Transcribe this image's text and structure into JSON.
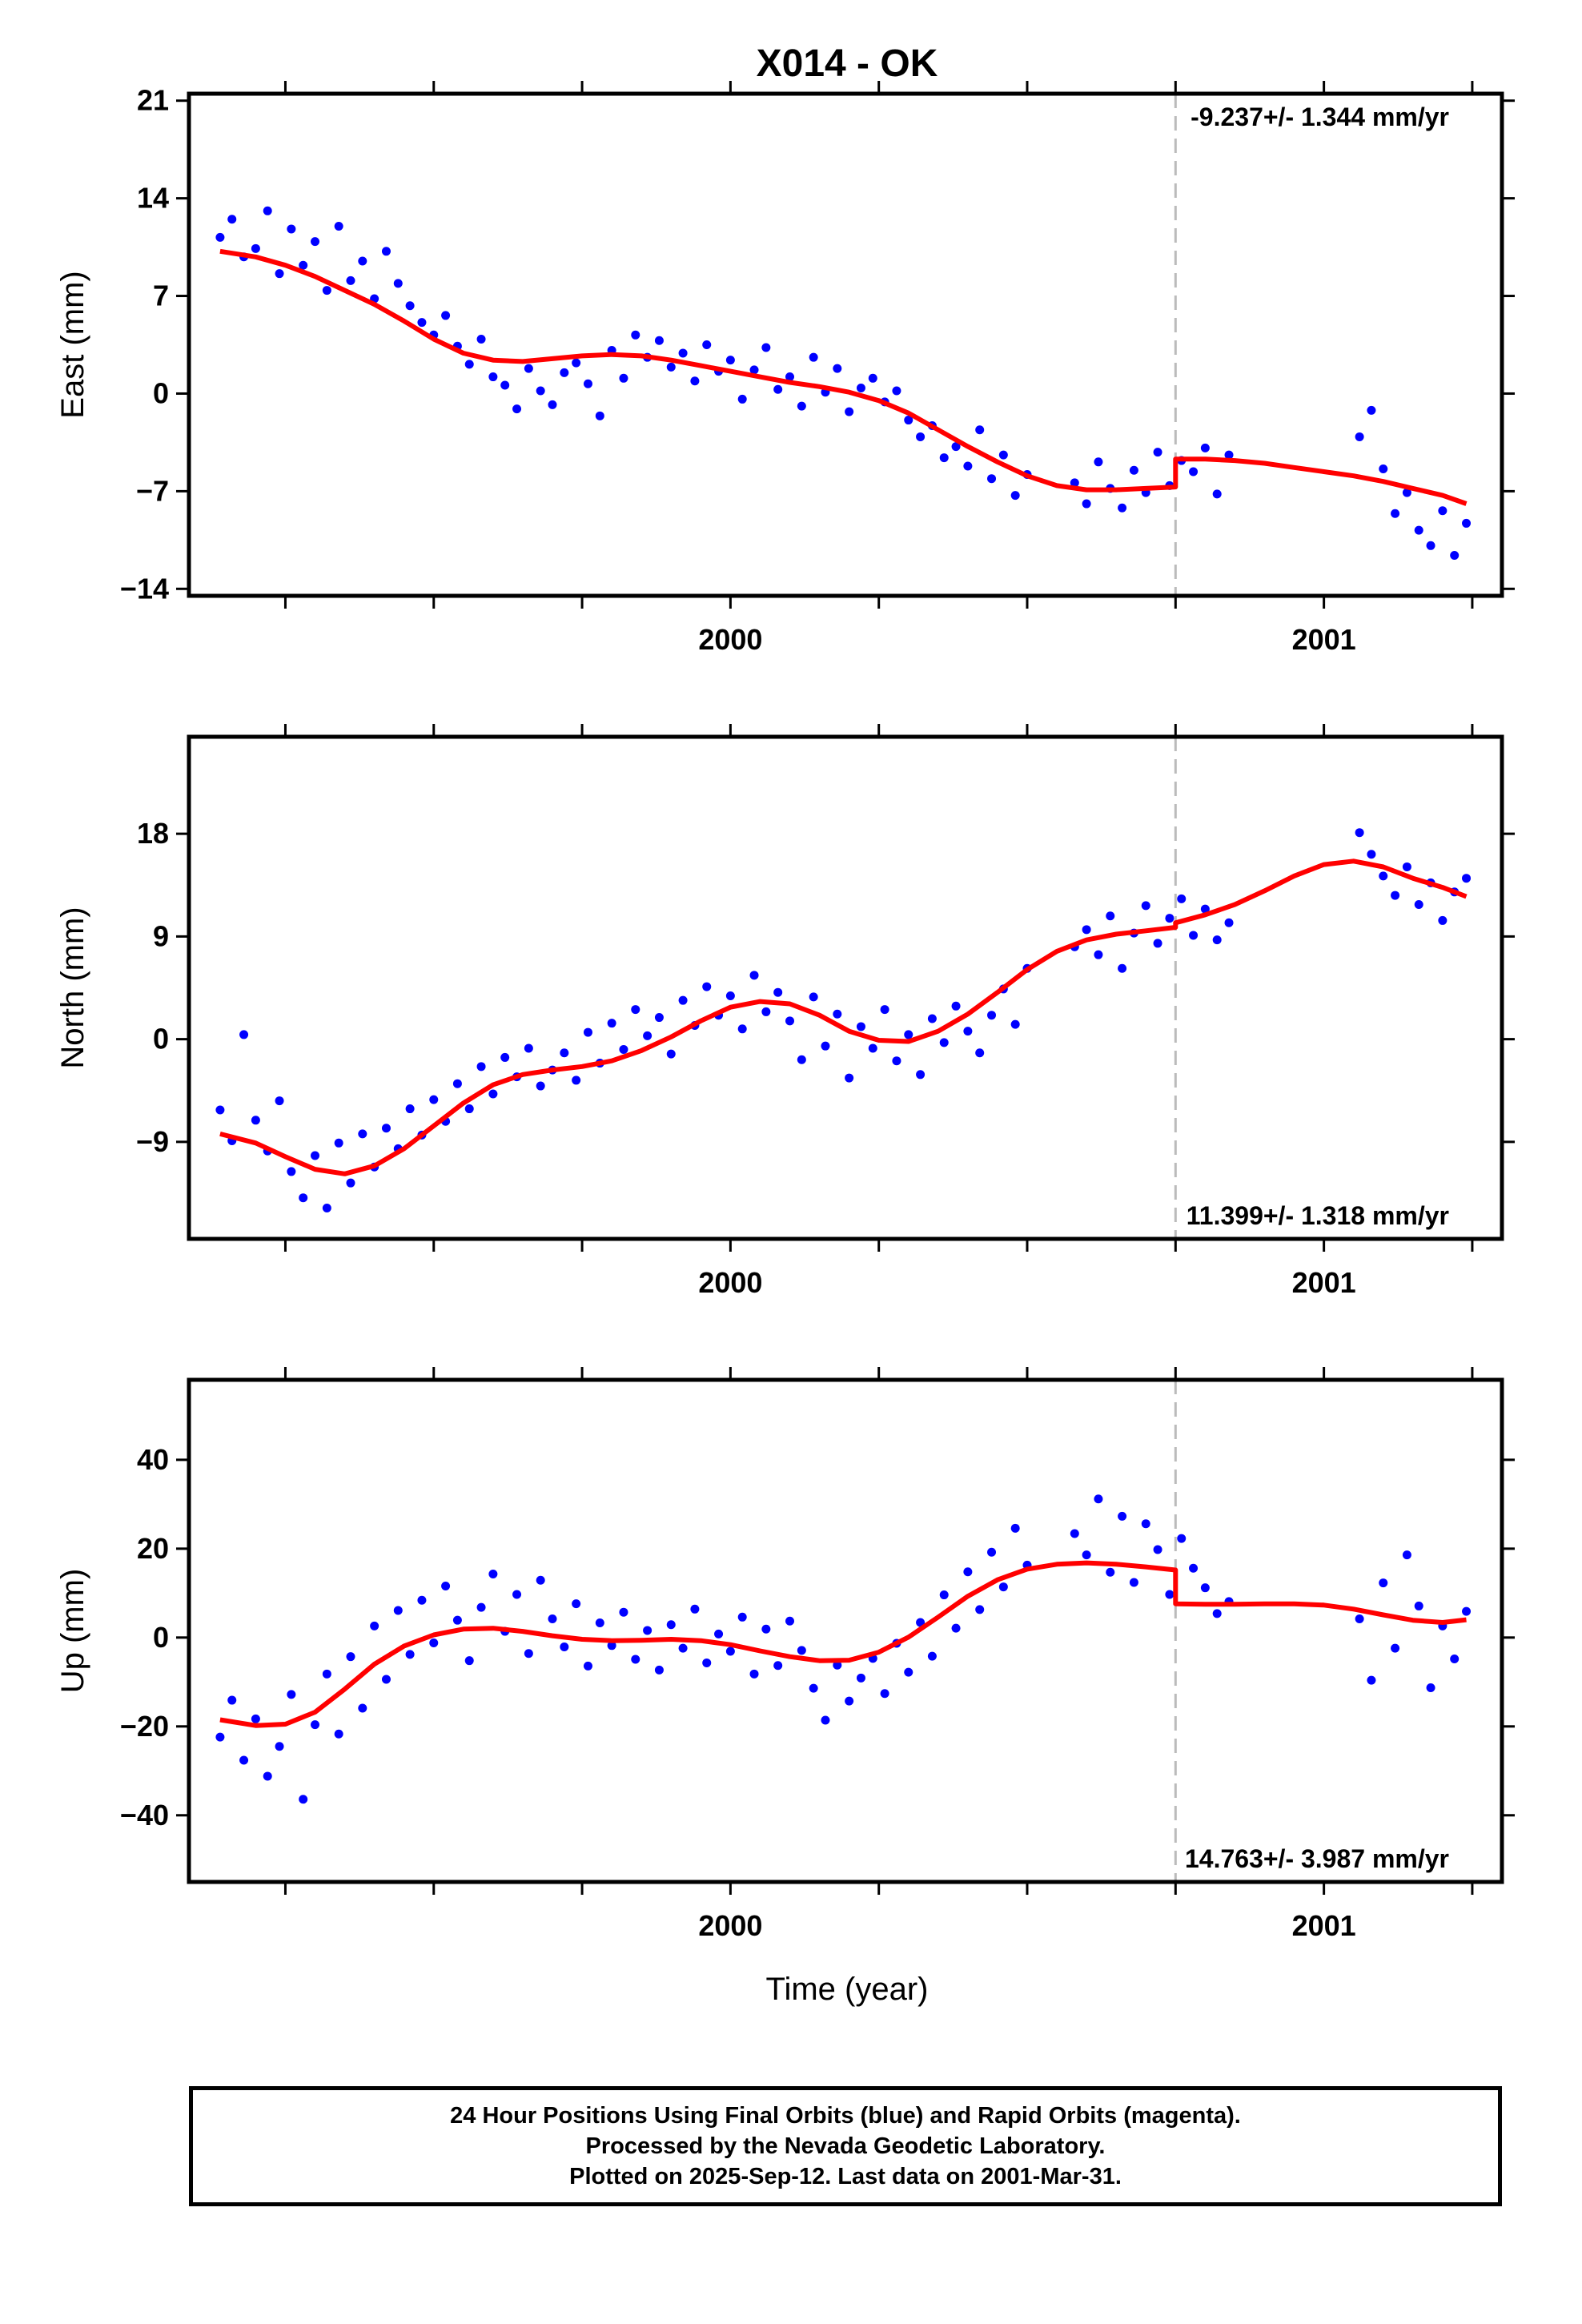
{
  "title": "X014 - OK",
  "x_axis_label": "Time (year)",
  "footer": {
    "lines": [
      "24 Hour Positions Using Final Orbits (blue) and Rapid Orbits (magenta).",
      "Processed by the Nevada Geodetic Laboratory.",
      "Plotted on 2025-Sep-12. Last data on 2001-Mar-31."
    ]
  },
  "colors": {
    "points": "#0000ff",
    "model": "#ff0000",
    "marker_line": "#bbbbbb",
    "frame": "#000000"
  },
  "chart_data": [
    {
      "type": "scatter",
      "component": "East",
      "ylabel": "East (mm)",
      "rate_label": "-9.237+/- 1.344 mm/yr",
      "rate_position": "top-right",
      "xlim": [
        1999.0875,
        2001.3
      ],
      "ylim": [
        -14.5,
        21.5
      ],
      "yticks": [
        -14,
        -7,
        0,
        7,
        14,
        21
      ],
      "xticks": [
        1999.25,
        1999.5,
        1999.75,
        2000.0,
        2000.25,
        2000.5,
        2000.75,
        2001.0,
        2001.25
      ],
      "xtick_labels": [
        {
          "x": 2000.0,
          "label": "2000"
        },
        {
          "x": 2001.0,
          "label": "2001"
        }
      ],
      "equipment_change": 2000.75,
      "series": [
        {
          "role": "data",
          "x": [
            1999.14,
            1999.16,
            1999.18,
            1999.2,
            1999.22,
            1999.24,
            1999.26,
            1999.28,
            1999.3,
            1999.32,
            1999.34,
            1999.36,
            1999.38,
            1999.4,
            1999.42,
            1999.44,
            1999.46,
            1999.48,
            1999.5,
            1999.52,
            1999.54,
            1999.56,
            1999.58,
            1999.6,
            1999.62,
            1999.64,
            1999.66,
            1999.68,
            1999.7,
            1999.72,
            1999.74,
            1999.76,
            1999.78,
            1999.8,
            1999.82,
            1999.84,
            1999.86,
            1999.88,
            1999.9,
            1999.92,
            1999.94,
            1999.96,
            1999.98,
            2000.0,
            2000.02,
            2000.04,
            2000.06,
            2000.08,
            2000.1,
            2000.12,
            2000.14,
            2000.16,
            2000.18,
            2000.2,
            2000.22,
            2000.24,
            2000.26,
            2000.28,
            2000.3,
            2000.32,
            2000.34,
            2000.36,
            2000.38,
            2000.4,
            2000.42,
            2000.44,
            2000.46,
            2000.48,
            2000.5,
            2000.58,
            2000.6,
            2000.62,
            2000.64,
            2000.66,
            2000.68,
            2000.7,
            2000.72,
            2000.74,
            2000.76,
            2000.78,
            2000.8,
            2000.82,
            2000.84,
            2001.06,
            2001.08,
            2001.1,
            2001.12,
            2001.14,
            2001.16,
            2001.18,
            2001.2,
            2001.22,
            2001.24
          ],
          "y": [
            11.2,
            12.5,
            9.8,
            10.4,
            13.1,
            8.6,
            11.8,
            9.2,
            10.9,
            7.4,
            12.0,
            8.1,
            9.5,
            6.8,
            10.2,
            7.9,
            6.3,
            5.1,
            4.2,
            5.6,
            3.4,
            2.1,
            3.9,
            1.2,
            0.6,
            -1.1,
            1.8,
            0.2,
            -0.8,
            1.5,
            2.2,
            0.7,
            -1.6,
            3.1,
            1.1,
            4.2,
            2.6,
            3.8,
            1.9,
            2.9,
            0.9,
            3.5,
            1.6,
            2.4,
            -0.4,
            1.7,
            3.3,
            0.3,
            1.2,
            -0.9,
            2.6,
            0.1,
            1.8,
            -1.3,
            0.4,
            1.1,
            -0.6,
            0.2,
            -1.9,
            -3.1,
            -2.3,
            -4.6,
            -3.8,
            -5.2,
            -2.6,
            -6.1,
            -4.4,
            -7.3,
            -5.8,
            -6.4,
            -7.9,
            -4.9,
            -6.8,
            -8.2,
            -5.5,
            -7.1,
            -4.2,
            -6.6,
            -4.8,
            -5.6,
            -3.9,
            -7.2,
            -4.4,
            -3.1,
            -1.2,
            -5.4,
            -8.6,
            -7.1,
            -9.8,
            -10.9,
            -8.4,
            -11.6,
            -9.3
          ]
        },
        {
          "role": "model",
          "x": [
            1999.14,
            1999.2,
            1999.25,
            1999.3,
            1999.35,
            1999.4,
            1999.45,
            1999.5,
            1999.55,
            1999.6,
            1999.65,
            1999.7,
            1999.75,
            1999.8,
            1999.85,
            1999.9,
            1999.95,
            2000.0,
            2000.05,
            2000.1,
            2000.15,
            2000.2,
            2000.25,
            2000.3,
            2000.35,
            2000.4,
            2000.45,
            2000.5,
            2000.55,
            2000.6,
            2000.65,
            2000.7,
            2000.75,
            2000.75,
            2000.8,
            2000.85,
            2000.9,
            2000.95,
            2001.0,
            2001.05,
            2001.1,
            2001.15,
            2001.2,
            2001.24
          ],
          "y": [
            10.2,
            9.8,
            9.2,
            8.4,
            7.4,
            6.4,
            5.2,
            3.9,
            2.9,
            2.4,
            2.3,
            2.5,
            2.7,
            2.8,
            2.7,
            2.4,
            2.0,
            1.6,
            1.2,
            0.8,
            0.5,
            0.1,
            -0.5,
            -1.4,
            -2.6,
            -3.8,
            -4.9,
            -5.9,
            -6.6,
            -6.9,
            -6.9,
            -6.8,
            -6.7,
            -4.7,
            -4.7,
            -4.8,
            -5.0,
            -5.3,
            -5.6,
            -5.9,
            -6.3,
            -6.8,
            -7.3,
            -7.9
          ]
        }
      ]
    },
    {
      "type": "scatter",
      "component": "North",
      "ylabel": "North (mm)",
      "rate_label": "11.399+/- 1.318 mm/yr",
      "rate_position": "bottom-right",
      "xlim": [
        1999.0875,
        2001.3
      ],
      "ylim": [
        -17.5,
        26.5
      ],
      "yticks": [
        -9,
        0,
        9,
        18
      ],
      "xticks": [
        1999.25,
        1999.5,
        1999.75,
        2000.0,
        2000.25,
        2000.5,
        2000.75,
        2001.0,
        2001.25
      ],
      "xtick_labels": [
        {
          "x": 2000.0,
          "label": "2000"
        },
        {
          "x": 2001.0,
          "label": "2001"
        }
      ],
      "equipment_change": 2000.75,
      "series": [
        {
          "role": "data",
          "x": [
            1999.14,
            1999.16,
            1999.18,
            1999.2,
            1999.22,
            1999.24,
            1999.26,
            1999.28,
            1999.3,
            1999.32,
            1999.34,
            1999.36,
            1999.38,
            1999.4,
            1999.42,
            1999.44,
            1999.46,
            1999.48,
            1999.5,
            1999.52,
            1999.54,
            1999.56,
            1999.58,
            1999.6,
            1999.62,
            1999.64,
            1999.66,
            1999.68,
            1999.7,
            1999.72,
            1999.74,
            1999.76,
            1999.78,
            1999.8,
            1999.82,
            1999.84,
            1999.86,
            1999.88,
            1999.9,
            1999.92,
            1999.94,
            1999.96,
            1999.98,
            2000.0,
            2000.02,
            2000.04,
            2000.06,
            2000.08,
            2000.1,
            2000.12,
            2000.14,
            2000.16,
            2000.18,
            2000.2,
            2000.22,
            2000.24,
            2000.26,
            2000.28,
            2000.3,
            2000.32,
            2000.34,
            2000.36,
            2000.38,
            2000.4,
            2000.42,
            2000.44,
            2000.46,
            2000.48,
            2000.5,
            2000.58,
            2000.6,
            2000.62,
            2000.64,
            2000.66,
            2000.68,
            2000.7,
            2000.72,
            2000.74,
            2000.76,
            2000.78,
            2000.8,
            2000.82,
            2000.84,
            2001.06,
            2001.08,
            2001.1,
            2001.12,
            2001.14,
            2001.16,
            2001.18,
            2001.2,
            2001.22,
            2001.24
          ],
          "y": [
            -6.2,
            -8.9,
            0.4,
            -7.1,
            -9.8,
            -5.4,
            -11.6,
            -13.9,
            -10.2,
            -14.8,
            -9.1,
            -12.6,
            -8.3,
            -11.2,
            -7.8,
            -9.6,
            -6.1,
            -8.4,
            -5.3,
            -7.2,
            -3.9,
            -6.1,
            -2.4,
            -4.8,
            -1.6,
            -3.3,
            -0.8,
            -4.1,
            -2.7,
            -1.2,
            -3.6,
            0.6,
            -2.1,
            1.4,
            -0.9,
            2.6,
            0.3,
            1.9,
            -1.3,
            3.4,
            1.2,
            4.6,
            2.1,
            3.8,
            0.9,
            5.6,
            2.4,
            4.1,
            1.6,
            -1.8,
            3.7,
            -0.6,
            2.2,
            -3.4,
            1.1,
            -0.8,
            2.6,
            -1.9,
            0.4,
            -3.1,
            1.8,
            -0.3,
            2.9,
            0.7,
            -1.2,
            2.1,
            4.4,
            1.3,
            6.2,
            8.1,
            9.6,
            7.4,
            10.8,
            6.2,
            9.3,
            11.7,
            8.4,
            10.6,
            12.3,
            9.1,
            11.4,
            8.7,
            10.2,
            18.1,
            16.2,
            14.3,
            12.6,
            15.1,
            11.8,
            13.7,
            10.4,
            12.9,
            14.1
          ]
        },
        {
          "role": "model",
          "x": [
            1999.14,
            1999.2,
            1999.25,
            1999.3,
            1999.35,
            1999.4,
            1999.45,
            1999.5,
            1999.55,
            1999.6,
            1999.65,
            1999.7,
            1999.75,
            1999.8,
            1999.85,
            1999.9,
            1999.95,
            2000.0,
            2000.05,
            2000.1,
            2000.15,
            2000.2,
            2000.25,
            2000.3,
            2000.35,
            2000.4,
            2000.45,
            2000.5,
            2000.55,
            2000.6,
            2000.65,
            2000.7,
            2000.75,
            2000.75,
            2000.8,
            2000.85,
            2000.9,
            2000.95,
            2001.0,
            2001.05,
            2001.1,
            2001.15,
            2001.2,
            2001.24
          ],
          "y": [
            -8.3,
            -9.1,
            -10.3,
            -11.4,
            -11.8,
            -11.1,
            -9.6,
            -7.6,
            -5.6,
            -4.0,
            -3.1,
            -2.7,
            -2.4,
            -1.9,
            -1.0,
            0.2,
            1.6,
            2.8,
            3.3,
            3.1,
            2.1,
            0.7,
            -0.1,
            -0.2,
            0.7,
            2.2,
            4.1,
            6.1,
            7.7,
            8.7,
            9.2,
            9.5,
            9.8,
            10.2,
            10.9,
            11.8,
            13.0,
            14.3,
            15.3,
            15.6,
            15.1,
            14.1,
            13.3,
            12.5
          ]
        }
      ]
    },
    {
      "type": "scatter",
      "component": "Up",
      "ylabel": "Up (mm)",
      "rate_label": "14.763+/- 3.987 mm/yr",
      "rate_position": "bottom-right",
      "xlim": [
        1999.0875,
        2001.3
      ],
      "ylim": [
        -55,
        58
      ],
      "yticks": [
        -40,
        -20,
        0,
        20,
        40
      ],
      "xticks": [
        1999.25,
        1999.5,
        1999.75,
        2000.0,
        2000.25,
        2000.5,
        2000.75,
        2001.0,
        2001.25
      ],
      "xtick_labels": [
        {
          "x": 2000.0,
          "label": "2000"
        },
        {
          "x": 2001.0,
          "label": "2001"
        }
      ],
      "equipment_change": 2000.75,
      "series": [
        {
          "role": "data",
          "x": [
            1999.14,
            1999.16,
            1999.18,
            1999.2,
            1999.22,
            1999.24,
            1999.26,
            1999.28,
            1999.3,
            1999.32,
            1999.34,
            1999.36,
            1999.38,
            1999.4,
            1999.42,
            1999.44,
            1999.46,
            1999.48,
            1999.5,
            1999.52,
            1999.54,
            1999.56,
            1999.58,
            1999.6,
            1999.62,
            1999.64,
            1999.66,
            1999.68,
            1999.7,
            1999.72,
            1999.74,
            1999.76,
            1999.78,
            1999.8,
            1999.82,
            1999.84,
            1999.86,
            1999.88,
            1999.9,
            1999.92,
            1999.94,
            1999.96,
            1999.98,
            2000.0,
            2000.02,
            2000.04,
            2000.06,
            2000.08,
            2000.1,
            2000.12,
            2000.14,
            2000.16,
            2000.18,
            2000.2,
            2000.22,
            2000.24,
            2000.26,
            2000.28,
            2000.3,
            2000.32,
            2000.34,
            2000.36,
            2000.38,
            2000.4,
            2000.42,
            2000.44,
            2000.46,
            2000.48,
            2000.5,
            2000.58,
            2000.6,
            2000.62,
            2000.64,
            2000.66,
            2000.68,
            2000.7,
            2000.72,
            2000.74,
            2000.76,
            2000.78,
            2000.8,
            2000.82,
            2000.84,
            2001.06,
            2001.08,
            2001.1,
            2001.12,
            2001.14,
            2001.16,
            2001.18,
            2001.2,
            2001.22,
            2001.24
          ],
          "y": [
            -22.4,
            -14.1,
            -27.6,
            -18.3,
            -31.2,
            -24.5,
            -12.8,
            -36.4,
            -19.6,
            -8.2,
            -21.7,
            -4.3,
            -15.9,
            2.6,
            -9.4,
            6.1,
            -3.8,
            8.4,
            -1.2,
            11.6,
            3.9,
            -5.2,
            6.8,
            14.3,
            1.4,
            9.7,
            -3.6,
            12.9,
            4.2,
            -2.1,
            7.6,
            -6.4,
            3.3,
            -1.8,
            5.7,
            -4.9,
            1.6,
            -7.3,
            2.9,
            -2.4,
            6.4,
            -5.7,
            0.8,
            -3.1,
            4.6,
            -8.2,
            1.9,
            -6.3,
            3.7,
            -2.9,
            -11.4,
            -18.6,
            -6.2,
            -14.3,
            -9.1,
            -4.7,
            -12.6,
            -1.3,
            -7.8,
            3.4,
            -4.2,
            9.6,
            2.1,
            14.8,
            6.3,
            19.2,
            11.4,
            24.6,
            16.3,
            23.4,
            18.6,
            31.2,
            14.7,
            27.3,
            12.4,
            25.6,
            19.8,
            9.7,
            22.3,
            15.6,
            11.2,
            5.4,
            8.1,
            4.2,
            -9.6,
            12.3,
            -2.4,
            18.6,
            7.1,
            -11.3,
            2.6,
            -4.8,
            5.9
          ]
        },
        {
          "role": "model",
          "x": [
            1999.14,
            1999.2,
            1999.25,
            1999.3,
            1999.35,
            1999.4,
            1999.45,
            1999.5,
            1999.55,
            1999.6,
            1999.65,
            1999.7,
            1999.75,
            1999.8,
            1999.85,
            1999.9,
            1999.95,
            2000.0,
            2000.05,
            2000.1,
            2000.15,
            2000.2,
            2000.25,
            2000.3,
            2000.35,
            2000.4,
            2000.45,
            2000.5,
            2000.55,
            2000.6,
            2000.65,
            2000.7,
            2000.75,
            2000.75,
            2000.8,
            2000.85,
            2000.9,
            2000.95,
            2001.0,
            2001.05,
            2001.1,
            2001.15,
            2001.2,
            2001.24
          ],
          "y": [
            -18.5,
            -19.8,
            -19.5,
            -16.8,
            -11.6,
            -6.0,
            -1.9,
            0.6,
            1.9,
            2.1,
            1.4,
            0.4,
            -0.4,
            -0.7,
            -0.6,
            -0.4,
            -0.7,
            -1.6,
            -3.0,
            -4.3,
            -5.2,
            -5.1,
            -3.3,
            0.1,
            4.6,
            9.3,
            13.0,
            15.4,
            16.5,
            16.8,
            16.5,
            15.9,
            15.2,
            7.6,
            7.5,
            7.5,
            7.6,
            7.6,
            7.3,
            6.4,
            5.1,
            3.9,
            3.4,
            4.0
          ]
        }
      ]
    }
  ]
}
